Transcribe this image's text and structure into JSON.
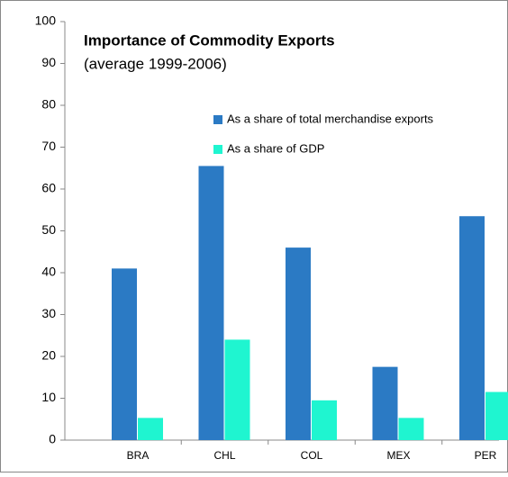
{
  "chart_data": {
    "type": "bar",
    "title": "Importance of Commodity Exports",
    "subtitle": "(average 1999-2006)",
    "categories": [
      "BRA",
      "CHL",
      "COL",
      "MEX",
      "PER"
    ],
    "series": [
      {
        "name": "As a share of total merchandise exports",
        "color": "#2b7ac4",
        "values": [
          41,
          65.5,
          46,
          17.5,
          53.5
        ]
      },
      {
        "name": "As a share of GDP",
        "color": "#1ff5d0",
        "values": [
          5.3,
          24,
          9.5,
          5.3,
          11.5
        ]
      }
    ],
    "ylim": [
      0,
      100
    ],
    "yticks": [
      0,
      10,
      20,
      30,
      40,
      50,
      60,
      70,
      80,
      90,
      100
    ]
  }
}
